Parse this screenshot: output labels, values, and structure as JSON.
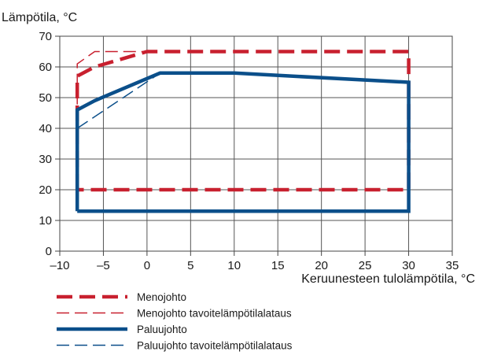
{
  "chart_data": {
    "type": "line",
    "title": "",
    "ylabel": "Lämpötila, °C",
    "xlabel": "Keruunesteen tulolämpötila, °C",
    "xlim": [
      -10,
      35
    ],
    "ylim": [
      0,
      70
    ],
    "x_ticks": [
      -10,
      -5,
      0,
      5,
      10,
      15,
      20,
      25,
      30,
      35
    ],
    "y_ticks": [
      0,
      10,
      20,
      30,
      40,
      50,
      60,
      70
    ],
    "x_tick_labels": [
      "–10",
      "–5",
      "0",
      "5",
      "10",
      "15",
      "20",
      "25",
      "30",
      "35"
    ],
    "y_tick_labels": [
      "0",
      "10",
      "20",
      "30",
      "40",
      "50",
      "60",
      "70"
    ],
    "grid": true,
    "legend_position": "bottom",
    "series": [
      {
        "name": "Menojohto",
        "color": "#c8202f",
        "style": "thick-dashed",
        "points": [
          [
            -8,
            20
          ],
          [
            -8,
            57
          ],
          [
            -6,
            60
          ],
          [
            0,
            65
          ],
          [
            30,
            65
          ],
          [
            30,
            20
          ],
          [
            -8,
            20
          ]
        ]
      },
      {
        "name": "Menojohto tavoitelämpötilalataus",
        "color": "#c8202f",
        "style": "thin-dashed",
        "points": [
          [
            -8,
            36
          ],
          [
            -8,
            61
          ],
          [
            -6,
            65
          ],
          [
            0,
            65
          ]
        ]
      },
      {
        "name": "Paluujohto",
        "color": "#0b4f8a",
        "style": "thick-solid",
        "points": [
          [
            -8,
            13
          ],
          [
            -8,
            46
          ],
          [
            -6,
            49
          ],
          [
            1.5,
            58
          ],
          [
            10,
            58
          ],
          [
            30,
            55
          ],
          [
            30,
            13
          ],
          [
            -8,
            13
          ]
        ]
      },
      {
        "name": "Paluujohto tavoitelämpötilalataus",
        "color": "#0b4f8a",
        "style": "thin-dashed",
        "points": [
          [
            -8,
            40
          ],
          [
            1.5,
            58
          ]
        ]
      }
    ]
  }
}
